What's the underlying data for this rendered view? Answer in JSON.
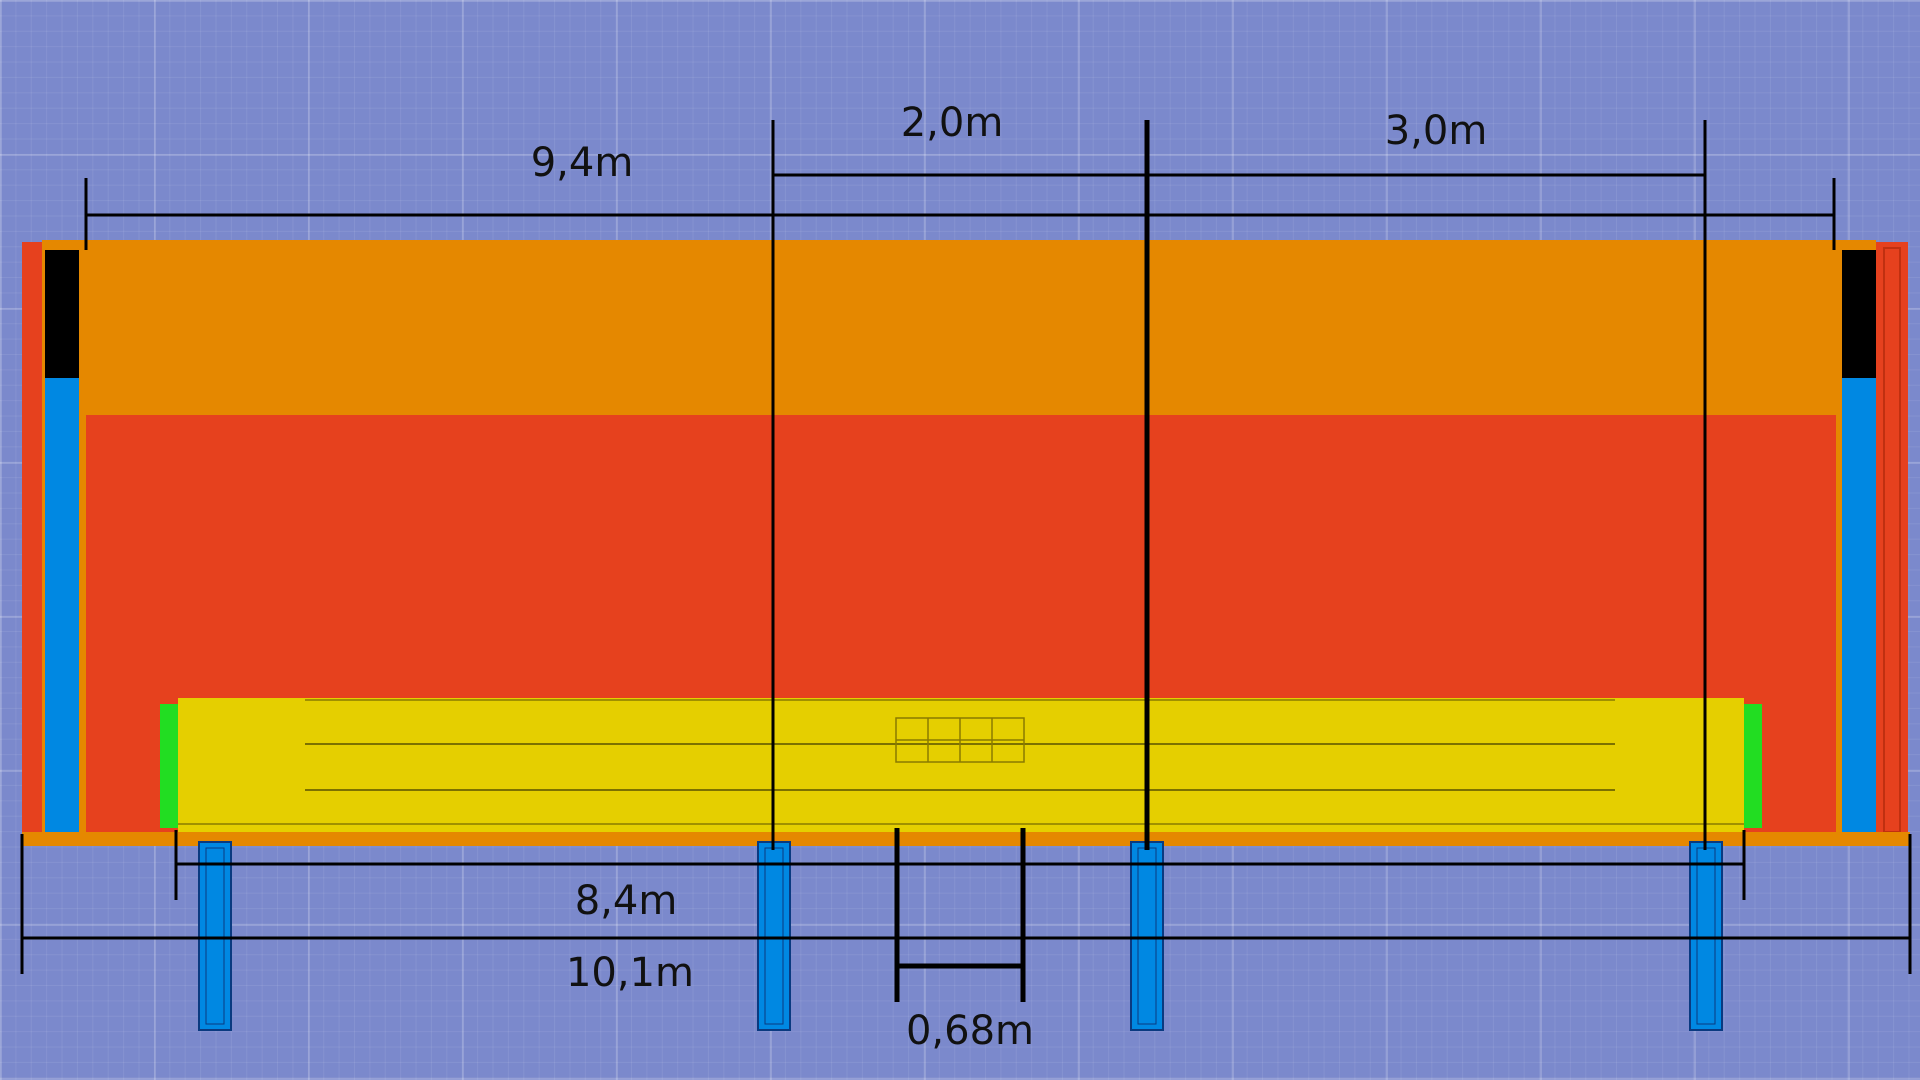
{
  "dimensions": {
    "overall_length": "10,1m",
    "top_length": "9,4m",
    "inner_length": "8,4m",
    "span_left": "2,0m",
    "span_right": "3,0m",
    "opening_width": "0,68m"
  },
  "colors": {
    "background": "#7b89cc",
    "upper_band": "#e58800",
    "main_panel": "#e6411e",
    "bar": "#e5cf00",
    "post": "#0088e2",
    "end_cap": "#22dd22",
    "dark": "#000000"
  }
}
